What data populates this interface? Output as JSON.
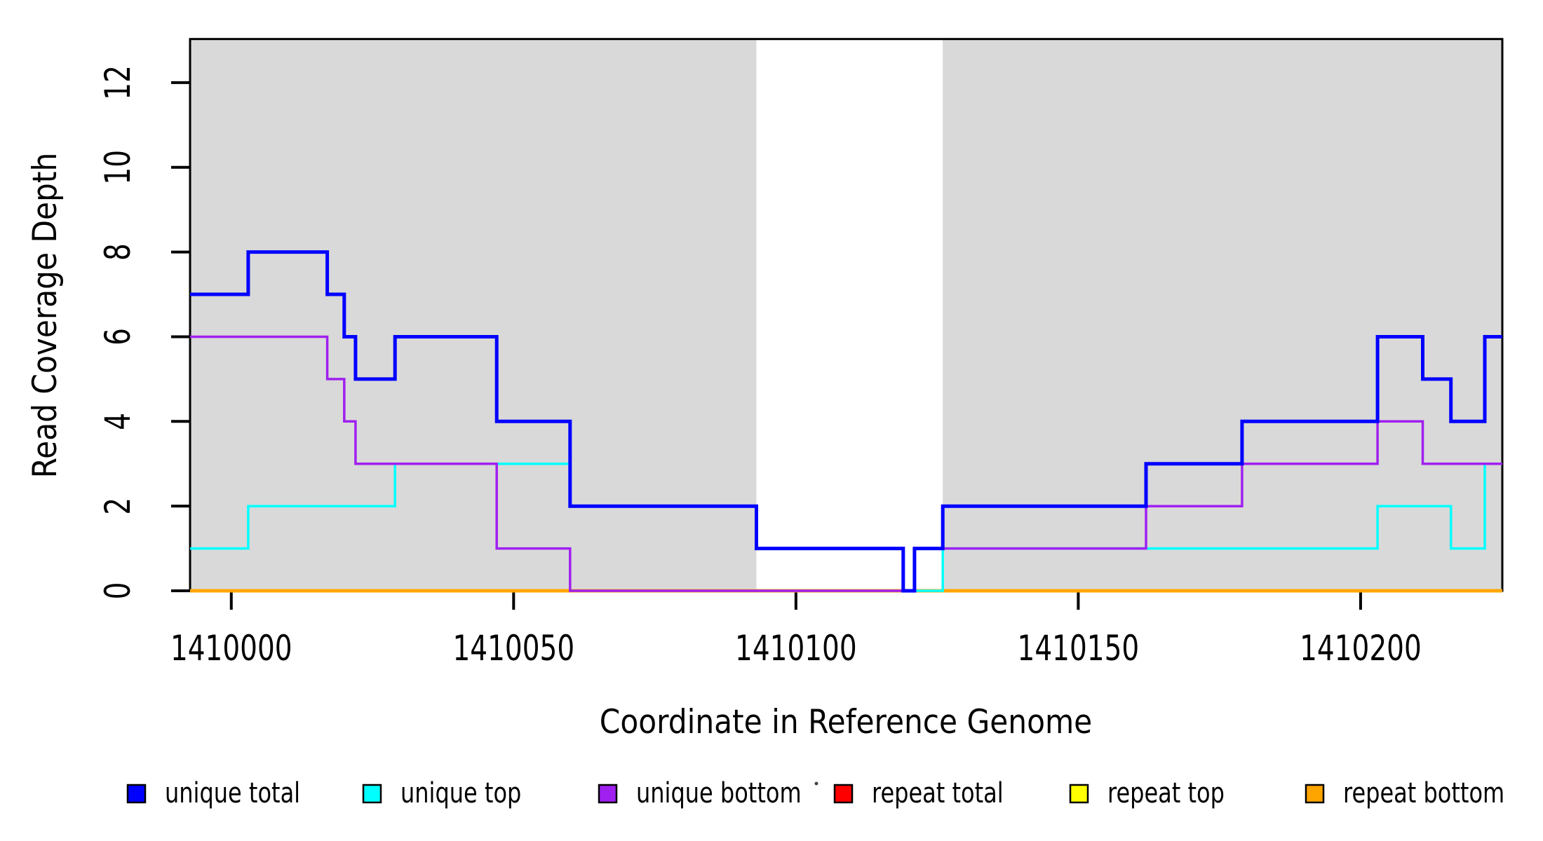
{
  "chart_data": {
    "type": "line",
    "subtype": "step-after-coverage-plot",
    "title": "",
    "xlabel": "Coordinate in Reference Genome",
    "ylabel": "Read Coverage Depth",
    "x_axis": {
      "ticks": [
        1410000,
        1410050,
        1410100,
        1410150,
        1410200
      ],
      "lim": [
        1409992.7,
        1410225.1
      ]
    },
    "y_axis": {
      "ticks": [
        0,
        2,
        4,
        6,
        8,
        10,
        12
      ],
      "lim": [
        0,
        13.03
      ]
    },
    "grid": false,
    "background_shading": {
      "color": "#D9D9D9",
      "regions": [
        {
          "from": 1409992.7,
          "to": 1410093
        },
        {
          "from": 1410126,
          "to": 1410225.1
        }
      ]
    },
    "series": [
      {
        "name": "unique total",
        "color": "#0000FF",
        "lwd": 5,
        "points": [
          [
            1409992.7,
            7
          ],
          [
            1410003,
            8
          ],
          [
            1410017,
            7
          ],
          [
            1410020,
            6
          ],
          [
            1410022,
            5
          ],
          [
            1410029,
            6
          ],
          [
            1410047,
            4
          ],
          [
            1410060,
            2
          ],
          [
            1410093,
            1
          ],
          [
            1410119,
            0
          ],
          [
            1410121,
            1
          ],
          [
            1410126,
            2
          ],
          [
            1410162,
            3
          ],
          [
            1410179,
            4
          ],
          [
            1410203,
            6
          ],
          [
            1410211,
            5
          ],
          [
            1410216,
            4
          ],
          [
            1410222,
            6
          ]
        ]
      },
      {
        "name": "unique top",
        "color": "#00FFFF",
        "lwd": 3.5,
        "points": [
          [
            1409992.7,
            1
          ],
          [
            1410003,
            2
          ],
          [
            1410029,
            3
          ],
          [
            1410060,
            2
          ],
          [
            1410093,
            1
          ],
          [
            1410119,
            0
          ],
          [
            1410126,
            1
          ],
          [
            1410203,
            2
          ],
          [
            1410216,
            1
          ],
          [
            1410222,
            3
          ]
        ]
      },
      {
        "name": "unique bottom",
        "color": "#A020F0",
        "lwd": 3.5,
        "points": [
          [
            1409992.7,
            6
          ],
          [
            1410017,
            5
          ],
          [
            1410020,
            4
          ],
          [
            1410022,
            3
          ],
          [
            1410047,
            1
          ],
          [
            1410060,
            0
          ],
          [
            1410121,
            1
          ],
          [
            1410162,
            2
          ],
          [
            1410179,
            3
          ],
          [
            1410203,
            4
          ],
          [
            1410211,
            3
          ]
        ]
      },
      {
        "name": "repeat total",
        "color": "#FF0000",
        "lwd": 4.5,
        "points": [
          [
            1409992.7,
            0
          ]
        ]
      },
      {
        "name": "repeat top",
        "color": "#FFFF00",
        "lwd": 4.5,
        "points": [
          [
            1409992.7,
            0
          ]
        ]
      },
      {
        "name": "repeat bottom",
        "color": "#FFA500",
        "lwd": 4.5,
        "points": [
          [
            1409992.7,
            0
          ]
        ]
      }
    ],
    "draw_order": [
      "repeat total",
      "repeat top",
      "repeat bottom",
      "unique top",
      "unique bottom",
      "unique total"
    ],
    "legend_position": "bottom"
  },
  "legend": {
    "items": [
      {
        "label": "unique total",
        "color": "#0000FF"
      },
      {
        "label": "unique top",
        "color": "#00FFFF"
      },
      {
        "label": "unique bottom",
        "color": "#A020F0"
      },
      {
        "label": "repeat total",
        "color": "#FF0000"
      },
      {
        "label": "repeat top",
        "color": "#FFFF00"
      },
      {
        "label": "repeat bottom",
        "color": "#FFA500"
      }
    ]
  }
}
